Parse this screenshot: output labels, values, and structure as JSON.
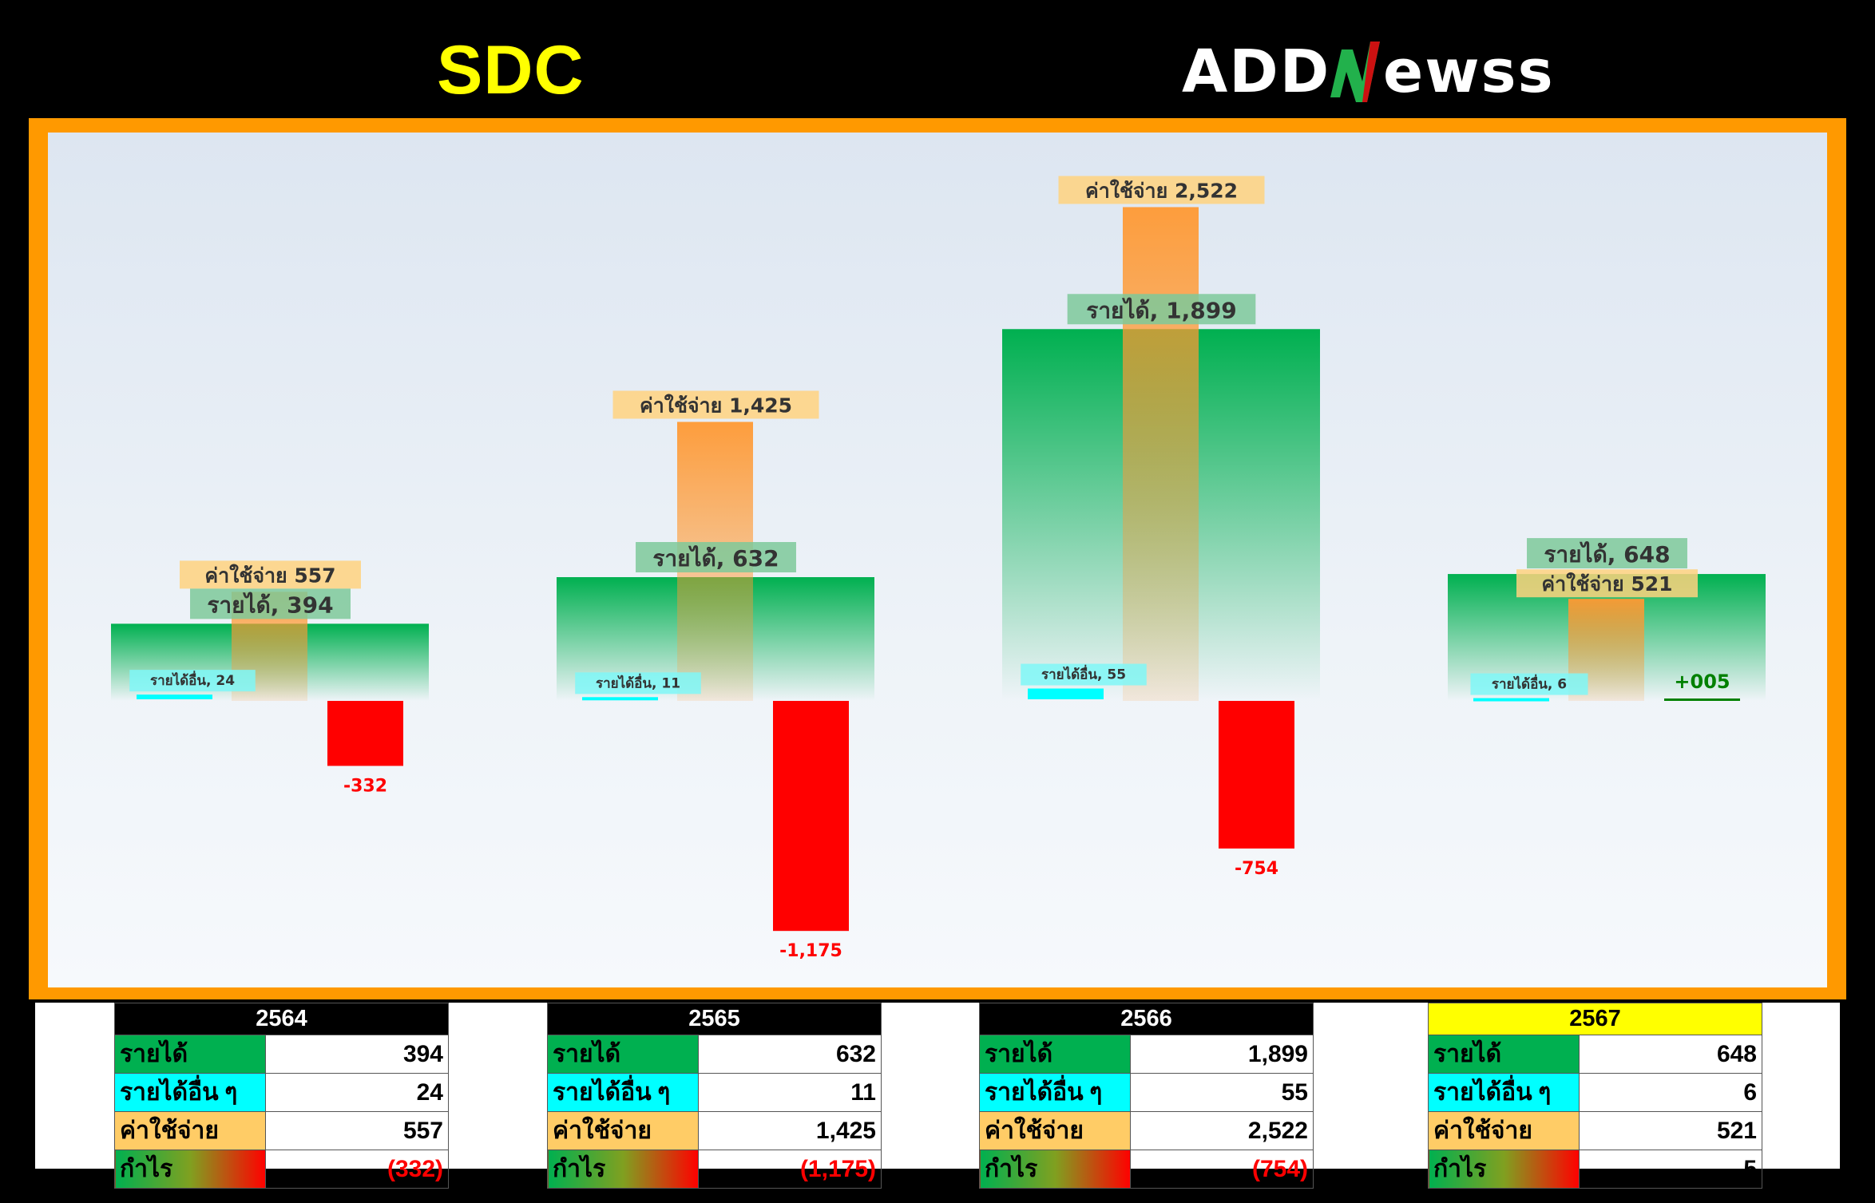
{
  "header": {
    "ticker": "SDC",
    "brand": "ADDNewss"
  },
  "colors": {
    "revenue": "#00b050",
    "other_income": "#00ffff",
    "expense": "#ff9933",
    "loss": "#ff0000",
    "profit": "#008000",
    "frame": "#ff9900",
    "highlight_year": "#ffff00"
  },
  "chart_data": {
    "type": "bar",
    "categories": [
      "2564",
      "2565",
      "2566",
      "2567"
    ],
    "series": [
      {
        "name": "รายได้",
        "values": [
          394,
          632,
          1899,
          648
        ]
      },
      {
        "name": "รายได้อื่น",
        "values": [
          24,
          11,
          55,
          6
        ]
      },
      {
        "name": "ค่าใช้จ่าย",
        "values": [
          557,
          1425,
          2522,
          521
        ]
      },
      {
        "name": "กำไร",
        "values": [
          -332,
          -1175,
          -754,
          5
        ]
      }
    ],
    "data_labels": {
      "revenue": [
        "รายได้, 394",
        "รายได้, 632",
        "รายได้, 1,899",
        "รายได้, 648"
      ],
      "other_income": [
        "รายได้อื่น, 24",
        "รายได้อื่น, 11",
        "รายได้อื่น, 55",
        "รายได้อื่น, 6"
      ],
      "expense": [
        "ค่าใช้จ่าย 557",
        "ค่าใช้จ่าย 1,425",
        "ค่าใช้จ่าย 2,522",
        "ค่าใช้จ่าย 521"
      ],
      "profit": [
        "-332",
        "-1,175",
        "-754",
        "+005"
      ]
    },
    "ylim": [
      -1420,
      2800
    ],
    "grid": false,
    "legend": "none"
  },
  "tables": [
    {
      "year": "2564",
      "highlight": false,
      "rows": [
        {
          "label": "รายได้",
          "value": "394"
        },
        {
          "label": "รายได้อื่น ๆ",
          "value": "24"
        },
        {
          "label": "ค่าใช้จ่าย",
          "value": "557"
        },
        {
          "label": "กำไร",
          "value": "(332)"
        }
      ]
    },
    {
      "year": "2565",
      "highlight": false,
      "rows": [
        {
          "label": "รายได้",
          "value": "632"
        },
        {
          "label": "รายได้อื่น ๆ",
          "value": "11"
        },
        {
          "label": "ค่าใช้จ่าย",
          "value": "1,425"
        },
        {
          "label": "กำไร",
          "value": "(1,175)"
        }
      ]
    },
    {
      "year": "2566",
      "highlight": false,
      "rows": [
        {
          "label": "รายได้",
          "value": "1,899"
        },
        {
          "label": "รายได้อื่น ๆ",
          "value": "55"
        },
        {
          "label": "ค่าใช้จ่าย",
          "value": "2,522"
        },
        {
          "label": "กำไร",
          "value": "(754)"
        }
      ]
    },
    {
      "year": "2567",
      "highlight": true,
      "rows": [
        {
          "label": "รายได้",
          "value": "648"
        },
        {
          "label": "รายได้อื่น ๆ",
          "value": "6"
        },
        {
          "label": "ค่าใช้จ่าย",
          "value": "521"
        },
        {
          "label": "กำไร",
          "value": "5"
        }
      ]
    }
  ]
}
